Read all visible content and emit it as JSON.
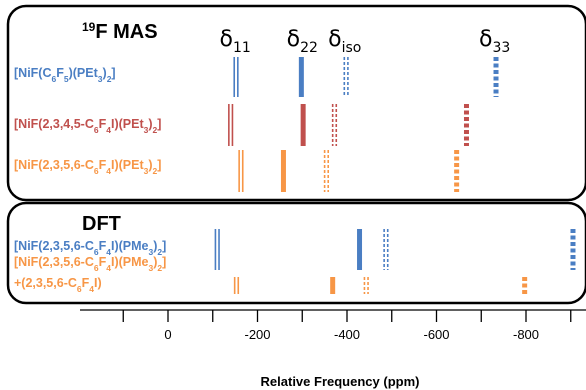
{
  "chart_data": {
    "type": "scatter",
    "title": "",
    "xlabel": "Relative Frequency (ppm)",
    "ylabel": "",
    "x_reversed": true,
    "xlim": [
      115,
      -920
    ],
    "x_ticks": [
      0,
      -200,
      -400,
      -600,
      -800
    ],
    "x_tick_labels": [
      "0",
      "-200",
      "-400",
      "-600",
      "-800"
    ],
    "x_minor_ticks": [
      100,
      -100,
      -300,
      -500,
      -700,
      -900
    ],
    "colors": {
      "blue": "#4a7ec3",
      "red": "#c0504d",
      "orange": "#f79646"
    },
    "panels": [
      {
        "title_prefix": "19",
        "title": "F MAS",
        "column_headers": [
          {
            "main": "δ",
            "sub": "11",
            "x": -150
          },
          {
            "main": "δ",
            "sub": "22",
            "x": -300
          },
          {
            "main": "δ",
            "sub": "iso",
            "x": -395
          },
          {
            "main": "δ",
            "sub": "33",
            "x": -730
          }
        ],
        "series": [
          {
            "label": "[NiF(C6F5)(PEt3)2]",
            "label_parts": [
              {
                "t": "[NiF(C",
                "s": false
              },
              {
                "t": "6",
                "s": true
              },
              {
                "t": "F",
                "s": false
              },
              {
                "t": "5",
                "s": true
              },
              {
                "t": ")(PEt",
                "s": false
              },
              {
                "t": "3",
                "s": true
              },
              {
                "t": ")",
                "s": false
              },
              {
                "t": "2",
                "s": true
              },
              {
                "t": "]",
                "s": false
              }
            ],
            "color": "blue",
            "marks": [
              {
                "x": -152,
                "style": "double"
              },
              {
                "x": -298,
                "style": "solid"
              },
              {
                "x": -398,
                "style": "dashed-double"
              },
              {
                "x": -733,
                "style": "dashed"
              }
            ]
          },
          {
            "label": "[NiF(2,3,4,5-C6F4I)(PEt3)2]",
            "label_parts": [
              {
                "t": "[NiF(2,3,4,5-C",
                "s": false
              },
              {
                "t": "6",
                "s": true
              },
              {
                "t": "F",
                "s": false
              },
              {
                "t": "4",
                "s": true
              },
              {
                "t": "I)(PEt",
                "s": false
              },
              {
                "t": "3",
                "s": true
              },
              {
                "t": ")",
                "s": false
              },
              {
                "t": "2",
                "s": true
              },
              {
                "t": "]",
                "s": false
              }
            ],
            "color": "red",
            "marks": [
              {
                "x": -140,
                "style": "double"
              },
              {
                "x": -302,
                "style": "solid"
              },
              {
                "x": -372,
                "style": "dashed-double"
              },
              {
                "x": -667,
                "style": "dashed"
              }
            ]
          },
          {
            "label": "[NiF(2,3,5,6-C6F4I)(PEt3)2]",
            "label_parts": [
              {
                "t": "[NiF(2,3,5,6-C",
                "s": false
              },
              {
                "t": "6",
                "s": true
              },
              {
                "t": "F",
                "s": false
              },
              {
                "t": "4",
                "s": true
              },
              {
                "t": "I)(PEt",
                "s": false
              },
              {
                "t": "3",
                "s": true
              },
              {
                "t": ")",
                "s": false
              },
              {
                "t": "2",
                "s": true
              },
              {
                "t": "]",
                "s": false
              }
            ],
            "color": "orange",
            "marks": [
              {
                "x": -163,
                "style": "double"
              },
              {
                "x": -258,
                "style": "solid"
              },
              {
                "x": -354,
                "style": "dashed-double"
              },
              {
                "x": -645,
                "style": "dashed"
              }
            ]
          }
        ]
      },
      {
        "title_prefix": "",
        "title": "DFT",
        "column_headers": [],
        "series": [
          {
            "label": "[NiF(2,3,5,6-C6F4I)(PMe3)2]",
            "label_parts": [
              {
                "t": "[NiF(2,3,5,6-C",
                "s": false
              },
              {
                "t": "6",
                "s": true
              },
              {
                "t": "F",
                "s": false
              },
              {
                "t": "4",
                "s": true
              },
              {
                "t": "I)(PMe",
                "s": false
              },
              {
                "t": "3",
                "s": true
              },
              {
                "t": ")",
                "s": false
              },
              {
                "t": "2",
                "s": true
              },
              {
                "t": "]",
                "s": false
              }
            ],
            "color": "blue",
            "marks": [
              {
                "x": -110,
                "style": "double"
              },
              {
                "x": -428,
                "style": "solid"
              },
              {
                "x": -487,
                "style": "dashed-double"
              },
              {
                "x": -905,
                "style": "dashed"
              }
            ]
          },
          {
            "label": "[NiF(2,3,5,6-C6F4I)(PMe3)2] +(2,3,5,6-C6F4I)",
            "label_parts": [
              {
                "t": "[NiF(2,3,5,6-C",
                "s": false
              },
              {
                "t": "6",
                "s": true
              },
              {
                "t": "F",
                "s": false
              },
              {
                "t": "4",
                "s": true
              },
              {
                "t": "I)(PMe",
                "s": false
              },
              {
                "t": "3",
                "s": true
              },
              {
                "t": ")",
                "s": false
              },
              {
                "t": "2",
                "s": true
              },
              {
                "t": "]",
                "s": false
              }
            ],
            "label_line2_parts": [
              {
                "t": "+(2,3,5,6-C",
                "s": false
              },
              {
                "t": "6",
                "s": true
              },
              {
                "t": "F",
                "s": false
              },
              {
                "t": "4",
                "s": true
              },
              {
                "t": "I)",
                "s": false
              }
            ],
            "color": "orange",
            "marks": [
              {
                "x": -153,
                "style": "double"
              },
              {
                "x": -368,
                "style": "solid"
              },
              {
                "x": -443,
                "style": "dashed-double"
              },
              {
                "x": -797,
                "style": "dashed"
              }
            ]
          }
        ]
      }
    ]
  }
}
